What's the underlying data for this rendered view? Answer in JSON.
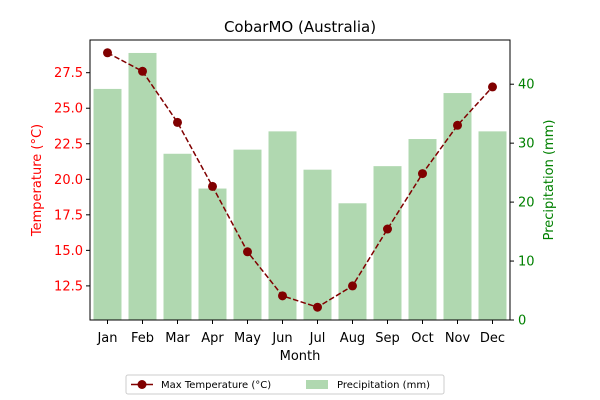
{
  "chart_data": {
    "type": "bar+line",
    "title": "CobarMO (Australia)",
    "xlabel": "Month",
    "categories": [
      "Jan",
      "Feb",
      "Mar",
      "Apr",
      "May",
      "Jun",
      "Jul",
      "Aug",
      "Sep",
      "Oct",
      "Nov",
      "Dec"
    ],
    "left_axis": {
      "label": "Temperature (°C)",
      "color": "#ff0000",
      "ylim": [
        10.1,
        29.8
      ],
      "ticks": [
        "12.5",
        "15.0",
        "17.5",
        "20.0",
        "22.5",
        "25.0",
        "27.5"
      ]
    },
    "right_axis": {
      "label": "Precipitation (mm)",
      "color": "#008000",
      "ylim": [
        0,
        47.5
      ],
      "ticks": [
        "0",
        "10",
        "20",
        "30",
        "40"
      ]
    },
    "series": [
      {
        "name": "Max Temperature (°C)",
        "type": "line",
        "axis": "left",
        "color": "#800000",
        "line_style": "dashed",
        "marker": "circle",
        "values": [
          28.9,
          27.6,
          24.0,
          19.5,
          14.9,
          11.8,
          11.0,
          12.5,
          16.5,
          20.4,
          23.8,
          26.5
        ]
      },
      {
        "name": "Precipitation (mm)",
        "type": "bar",
        "axis": "right",
        "color": "#b0d8b0",
        "values": [
          39.2,
          45.3,
          28.2,
          22.3,
          28.9,
          32.0,
          25.5,
          19.8,
          26.1,
          30.7,
          38.5,
          32.0
        ]
      }
    ],
    "legend_position": "bottom-center",
    "grid": false
  }
}
